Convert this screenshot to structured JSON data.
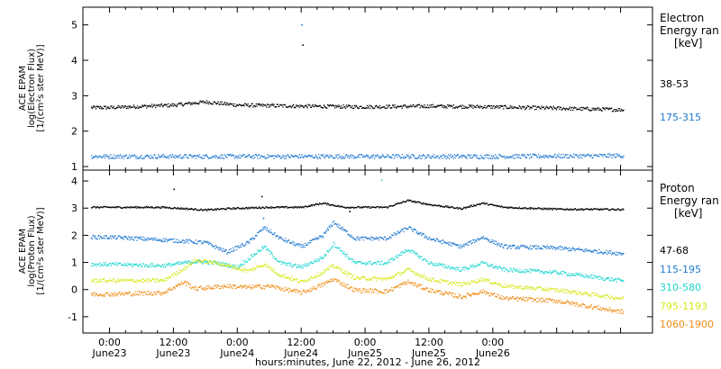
{
  "chart_data": [
    {
      "type": "scatter",
      "panel": "electron",
      "ylabel_lines": [
        "ACE EPAM",
        "log(Electron Flux)",
        "[1/(cm²s ster MeV)]"
      ],
      "yticks": [
        1,
        2,
        3,
        4,
        5
      ],
      "ylim": [
        0.9,
        5.5
      ],
      "xlim": [
        -5,
        102
      ],
      "legend_title_lines": [
        "Electron",
        "Energy ran",
        "[keV]"
      ],
      "series": [
        {
          "name": "38-53",
          "color": "#000000",
          "base": [
            [
              0,
              2.68
            ],
            [
              12,
              2.75
            ],
            [
              18,
              2.84
            ],
            [
              24,
              2.75
            ],
            [
              36,
              2.72
            ],
            [
              48,
              2.7
            ],
            [
              60,
              2.72
            ],
            [
              72,
              2.7
            ],
            [
              84,
              2.66
            ],
            [
              96,
              2.62
            ]
          ],
          "noise": 0.05
        },
        {
          "name": "175-315",
          "color": "#1e78d0",
          "base": [
            [
              0,
              1.3
            ],
            [
              24,
              1.3
            ],
            [
              48,
              1.3
            ],
            [
              72,
              1.3
            ],
            [
              96,
              1.32
            ]
          ],
          "noise": 0.06
        }
      ],
      "outliers": [
        {
          "x": 36.0,
          "y": 5.02,
          "color": "#1e78d0"
        },
        {
          "x": 36.2,
          "y": 4.45,
          "color": "#000000"
        }
      ]
    },
    {
      "type": "scatter",
      "panel": "proton",
      "ylabel_lines": [
        "ACE EPAM",
        "log(Proton Flux)",
        "[1/(cm²s ster MeV)]"
      ],
      "yticks": [
        -1,
        0,
        1,
        2,
        3,
        4
      ],
      "ylim": [
        -1.6,
        4.4
      ],
      "xlim": [
        -5,
        102
      ],
      "legend_title_lines": [
        "Proton",
        "Energy ran",
        "[keV]"
      ],
      "series": [
        {
          "name": "47-68",
          "color": "#000000",
          "base": [
            [
              0,
              3.05
            ],
            [
              10,
              3.05
            ],
            [
              18,
              2.95
            ],
            [
              22,
              3.0
            ],
            [
              30,
              3.05
            ],
            [
              36,
              3.05
            ],
            [
              40,
              3.2
            ],
            [
              44,
              3.05
            ],
            [
              52,
              3.05
            ],
            [
              56,
              3.3
            ],
            [
              60,
              3.15
            ],
            [
              66,
              3.0
            ],
            [
              70,
              3.2
            ],
            [
              74,
              3.05
            ],
            [
              84,
              2.98
            ],
            [
              96,
              2.97
            ]
          ],
          "noise": 0.03
        },
        {
          "name": "115-195",
          "color": "#1e78d0",
          "base": [
            [
              0,
              1.95
            ],
            [
              10,
              1.85
            ],
            [
              18,
              1.75
            ],
            [
              22,
              1.4
            ],
            [
              26,
              1.75
            ],
            [
              29,
              2.3
            ],
            [
              32,
              1.9
            ],
            [
              36,
              1.6
            ],
            [
              40,
              2.0
            ],
            [
              42,
              2.5
            ],
            [
              46,
              1.9
            ],
            [
              52,
              1.9
            ],
            [
              56,
              2.3
            ],
            [
              60,
              1.9
            ],
            [
              66,
              1.6
            ],
            [
              70,
              1.95
            ],
            [
              74,
              1.6
            ],
            [
              84,
              1.55
            ],
            [
              96,
              1.35
            ]
          ],
          "noise": 0.07
        },
        {
          "name": "310-580",
          "color": "#1fd6d0",
          "base": [
            [
              0,
              0.95
            ],
            [
              10,
              0.9
            ],
            [
              16,
              1.05
            ],
            [
              20,
              1.0
            ],
            [
              24,
              0.85
            ],
            [
              29,
              1.6
            ],
            [
              32,
              1.0
            ],
            [
              36,
              0.85
            ],
            [
              40,
              1.2
            ],
            [
              42,
              1.7
            ],
            [
              46,
              1.0
            ],
            [
              52,
              1.0
            ],
            [
              56,
              1.5
            ],
            [
              60,
              1.0
            ],
            [
              66,
              0.75
            ],
            [
              70,
              1.0
            ],
            [
              74,
              0.75
            ],
            [
              84,
              0.65
            ],
            [
              96,
              0.35
            ]
          ],
          "noise": 0.07
        },
        {
          "name": "795-1193",
          "color": "#d7e81b",
          "base": [
            [
              0,
              0.35
            ],
            [
              10,
              0.35
            ],
            [
              14,
              0.8
            ],
            [
              16,
              1.1
            ],
            [
              20,
              1.0
            ],
            [
              26,
              0.7
            ],
            [
              29,
              0.95
            ],
            [
              32,
              0.55
            ],
            [
              36,
              0.3
            ],
            [
              40,
              0.65
            ],
            [
              42,
              0.9
            ],
            [
              46,
              0.45
            ],
            [
              52,
              0.4
            ],
            [
              56,
              0.75
            ],
            [
              60,
              0.4
            ],
            [
              66,
              0.2
            ],
            [
              70,
              0.4
            ],
            [
              74,
              0.15
            ],
            [
              84,
              0.0
            ],
            [
              96,
              -0.3
            ]
          ],
          "noise": 0.07
        },
        {
          "name": "1060-1900",
          "color": "#f08c14",
          "base": [
            [
              0,
              -0.15
            ],
            [
              10,
              -0.1
            ],
            [
              14,
              0.3
            ],
            [
              16,
              0.05
            ],
            [
              22,
              0.15
            ],
            [
              26,
              0.1
            ],
            [
              30,
              0.15
            ],
            [
              36,
              -0.1
            ],
            [
              40,
              0.2
            ],
            [
              42,
              0.4
            ],
            [
              46,
              0.0
            ],
            [
              52,
              -0.05
            ],
            [
              56,
              0.3
            ],
            [
              60,
              0.0
            ],
            [
              66,
              -0.25
            ],
            [
              70,
              -0.05
            ],
            [
              74,
              -0.3
            ],
            [
              84,
              -0.4
            ],
            [
              96,
              -0.8
            ]
          ],
          "noise": 0.08
        }
      ],
      "outliers": [
        {
          "x": 12.0,
          "y": 3.72,
          "color": "#000000"
        },
        {
          "x": 28.5,
          "y": 3.45,
          "color": "#000000"
        },
        {
          "x": 28.8,
          "y": 2.65,
          "color": "#1e78d0"
        },
        {
          "x": 51.0,
          "y": 4.05,
          "color": "#1fd6d0"
        },
        {
          "x": 45.0,
          "y": 2.9,
          "color": "#000000"
        }
      ]
    }
  ],
  "xaxis": {
    "ticks": [
      {
        "x": 0,
        "time": "0:00",
        "date": "June23"
      },
      {
        "x": 12,
        "time": "12:00",
        "date": "June23"
      },
      {
        "x": 24,
        "time": "0:00",
        "date": "June24"
      },
      {
        "x": 36,
        "time": "12:00",
        "date": "June24"
      },
      {
        "x": 48,
        "time": "0:00",
        "date": "June25"
      },
      {
        "x": 60,
        "time": "12:00",
        "date": "June25"
      },
      {
        "x": 72,
        "time": "0:00",
        "date": "June26"
      }
    ],
    "label": "hours:minutes, June 22, 2012 - June 26, 2012"
  }
}
